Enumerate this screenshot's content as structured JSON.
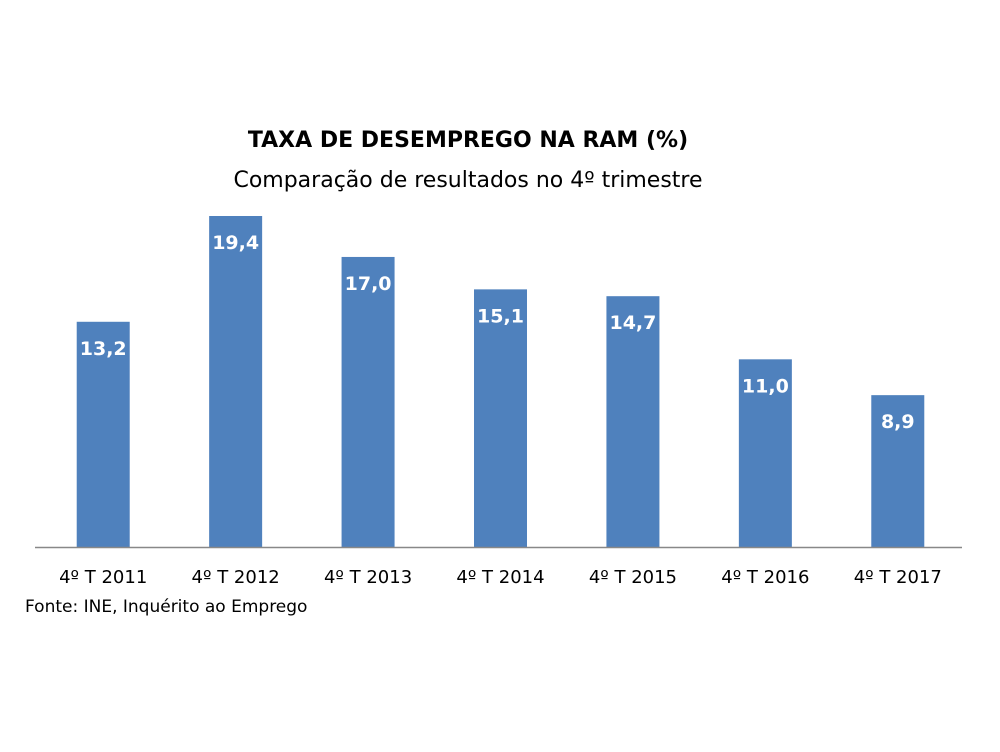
{
  "chart_data": {
    "type": "bar",
    "title": "TAXA DE DESEMPREGO NA RAM (%)",
    "subtitle": "Comparação de resultados no 4º trimestre",
    "categories": [
      "4º T 2011",
      "4º T 2012",
      "4º T 2013",
      "4º T 2014",
      "4º T 2015",
      "4º T 2016",
      "4º T 2017"
    ],
    "values": [
      13.2,
      19.4,
      17.0,
      15.1,
      14.7,
      11.0,
      8.9
    ],
    "data_labels": [
      "13,2",
      "19,4",
      "17,0",
      "15,1",
      "14,7",
      "11,0",
      "8,9"
    ],
    "xlabel": "",
    "ylabel": "",
    "ylim": [
      0,
      19.4
    ],
    "grid": false,
    "legend": "none",
    "bar_color": "#4f81bd",
    "source": "Fonte: INE, Inquérito ao Emprego"
  }
}
